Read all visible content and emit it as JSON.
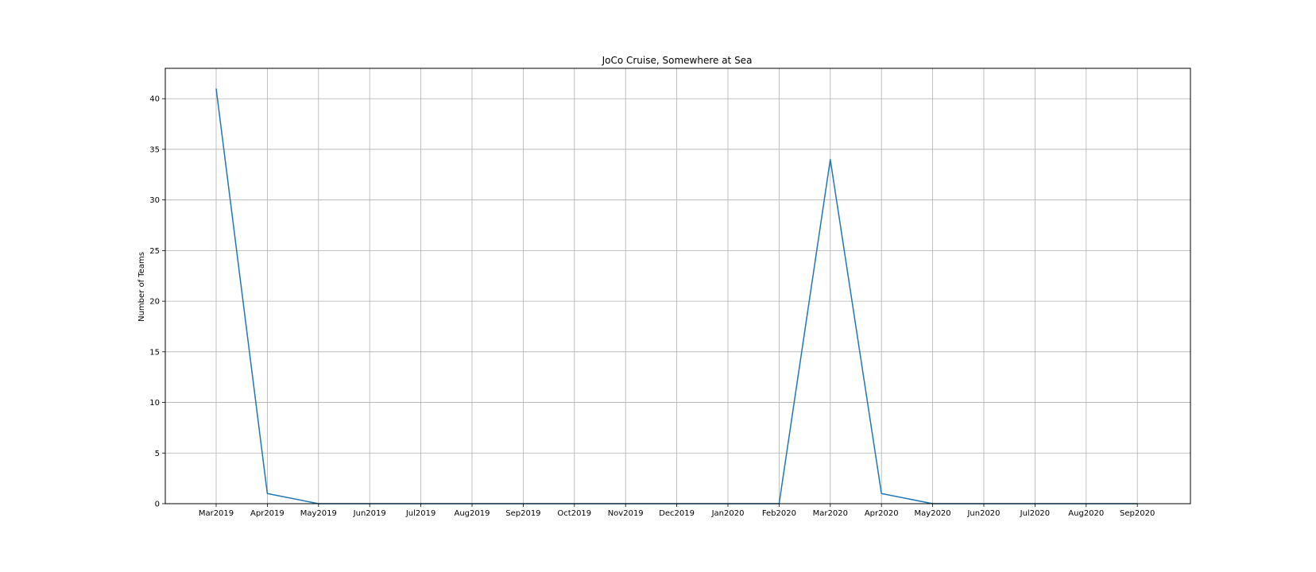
{
  "chart_data": {
    "type": "line",
    "title": "JoCo Cruise, Somewhere at Sea",
    "xlabel": "",
    "ylabel": "Number of Teams",
    "x": [
      "Mar2019",
      "Apr2019",
      "May2019",
      "Jun2019",
      "Jul2019",
      "Aug2019",
      "Sep2019",
      "Oct2019",
      "Nov2019",
      "Dec2019",
      "Jan2020",
      "Feb2020",
      "Mar2020",
      "Apr2020",
      "May2020",
      "Jun2020",
      "Jul2020",
      "Aug2020",
      "Sep2020"
    ],
    "series": [
      {
        "values": [
          41,
          1,
          0,
          0,
          0,
          0,
          0,
          0,
          0,
          0,
          0,
          0,
          34,
          1,
          0,
          0,
          0,
          0,
          0
        ]
      }
    ],
    "ylim": [
      0,
      43
    ],
    "yticks": [
      0,
      5,
      10,
      15,
      20,
      25,
      30,
      35,
      40
    ],
    "grid": true,
    "colors": {
      "line": "#1f77b4",
      "grid": "#b0b0b0",
      "axes": "#000000"
    }
  }
}
